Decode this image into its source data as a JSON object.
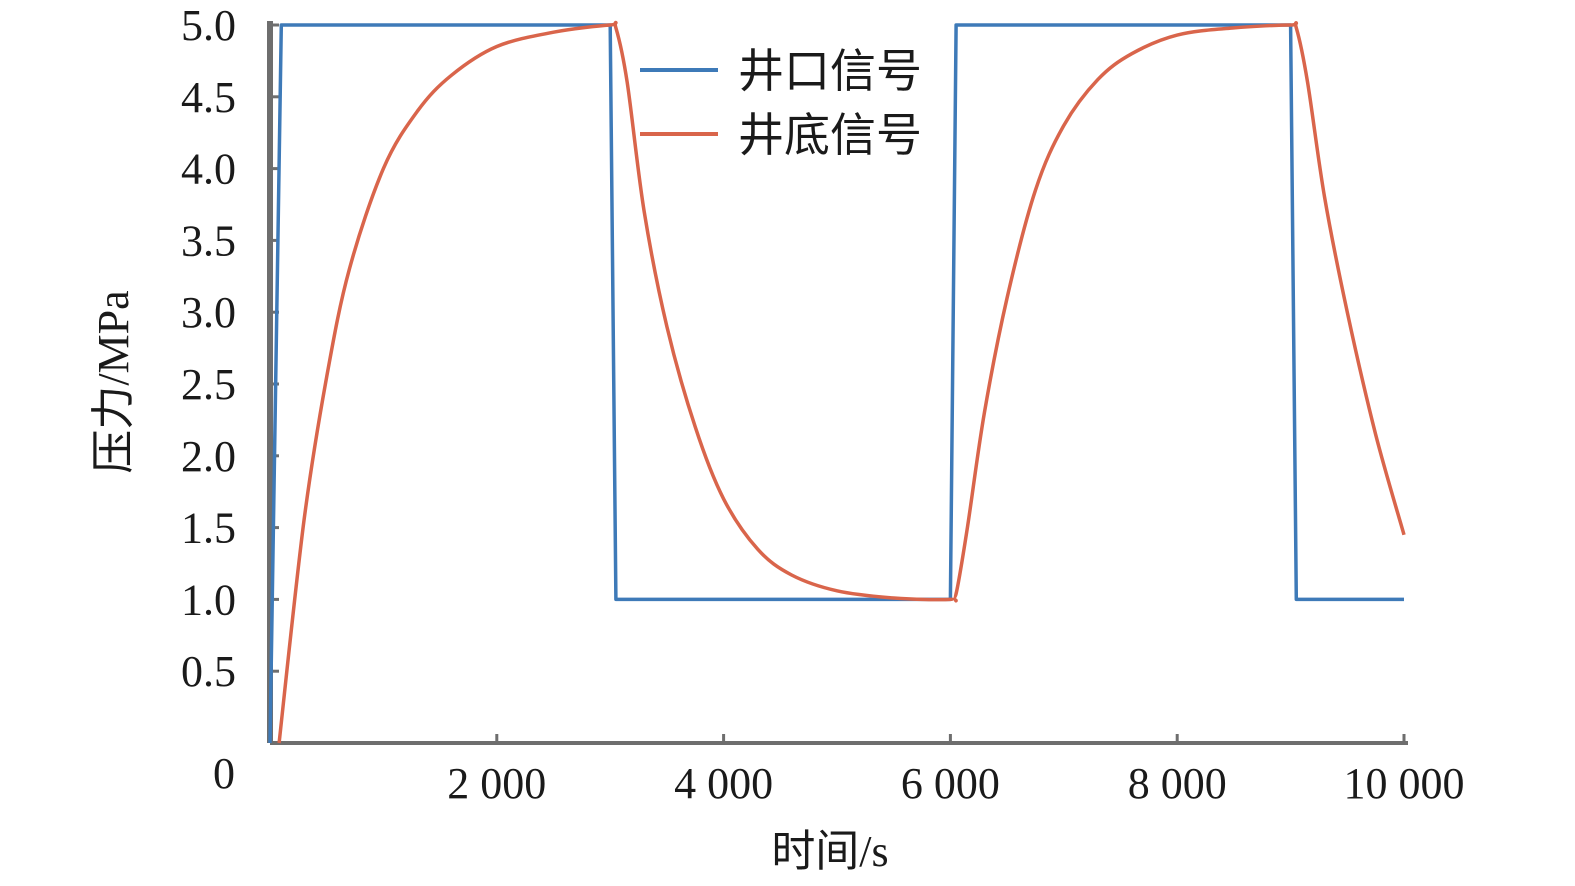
{
  "chart_data": {
    "type": "line",
    "xlabel": "时间/s",
    "ylabel": "压力/MPa",
    "xlim": [
      0,
      10000
    ],
    "ylim": [
      0,
      5.0
    ],
    "x_ticks": [
      0,
      2000,
      4000,
      6000,
      8000,
      10000
    ],
    "x_tick_labels": [
      "0",
      "2 000",
      "4 000",
      "6 000",
      "8 000",
      "10 000"
    ],
    "y_ticks": [
      0.5,
      1.0,
      1.5,
      2.0,
      2.5,
      3.0,
      3.5,
      4.0,
      4.5,
      5.0
    ],
    "y_tick_labels": [
      "0.5",
      "1.0",
      "1.5",
      "2.0",
      "2.5",
      "3.0",
      "3.5",
      "4.0",
      "4.5",
      "5.0"
    ],
    "grid": false,
    "legend_position": "top-right",
    "series": [
      {
        "name": "井口信号",
        "color": "#3e7ab8",
        "x": [
          0,
          100,
          3000,
          3050,
          6000,
          6050,
          9000,
          9050,
          10000
        ],
        "y": [
          0.0,
          5.0,
          5.0,
          1.0,
          1.0,
          5.0,
          5.0,
          1.0,
          1.0
        ]
      },
      {
        "name": "井底信号",
        "color": "#d9654b",
        "x": [
          80,
          300,
          500,
          700,
          1000,
          1300,
          1600,
          2000,
          2500,
          3000,
          3050,
          3150,
          3300,
          3500,
          3750,
          4000,
          4300,
          4600,
          5000,
          5500,
          6000,
          6050,
          6150,
          6300,
          6500,
          6750,
          7000,
          7300,
          7600,
          8000,
          8500,
          9000,
          9050,
          9150,
          9300,
          9500,
          9750,
          10000
        ],
        "y": [
          0.0,
          1.55,
          2.55,
          3.3,
          4.0,
          4.4,
          4.65,
          4.85,
          4.95,
          5.0,
          4.98,
          4.6,
          3.7,
          2.9,
          2.2,
          1.7,
          1.35,
          1.17,
          1.06,
          1.01,
          1.0,
          1.04,
          1.5,
          2.3,
          3.1,
          3.85,
          4.3,
          4.62,
          4.8,
          4.93,
          4.98,
          5.0,
          4.98,
          4.6,
          3.8,
          3.0,
          2.15,
          1.45
        ]
      }
    ]
  }
}
